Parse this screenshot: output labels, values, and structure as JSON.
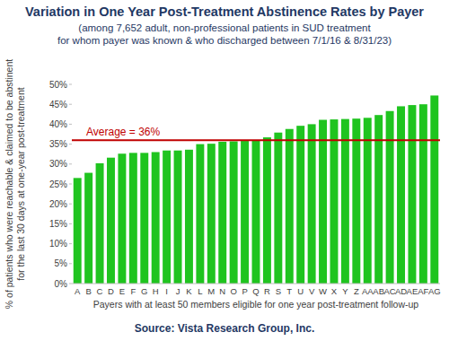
{
  "chart_data": {
    "type": "bar",
    "title": "Variation in One Year Post-Treatment Abstinence Rates by Payer",
    "subtitle": [
      "(among 7,652 adult, non-professional patients in SUD treatment",
      "for whom payer was known & who discharged between 7/1/16 & 8/31/23)"
    ],
    "y_label": [
      "% of patients who were reachable & claimed to be abstinent",
      "for the last 30 days at one-year post-treatment"
    ],
    "x_label": "Payers with at least 50 members eligible for one year post-treatment follow-up",
    "source": "Source:  Vista Research Group, Inc.",
    "categories": [
      "A",
      "B",
      "C",
      "D",
      "E",
      "F",
      "G",
      "H",
      "I",
      "J",
      "K",
      "L",
      "M",
      "N",
      "O",
      "P",
      "Q",
      "R",
      "S",
      "T",
      "U",
      "V",
      "W",
      "X",
      "Y",
      "Z",
      "AA",
      "AB",
      "AC",
      "AD",
      "AE",
      "AF",
      "AG"
    ],
    "values": [
      26.5,
      27.8,
      30.2,
      31.6,
      32.6,
      32.8,
      32.8,
      33.0,
      33.4,
      33.4,
      33.6,
      35.0,
      35.1,
      35.6,
      35.7,
      35.8,
      35.9,
      36.7,
      37.9,
      38.8,
      39.6,
      40.0,
      41.1,
      41.2,
      41.3,
      41.4,
      41.6,
      42.3,
      43.3,
      44.5,
      44.8,
      45.0,
      47.2
    ],
    "color": "#1fc41f",
    "reference_line": {
      "value": 36,
      "label": "Average = 36%",
      "color": "#c00000"
    },
    "ylim": [
      0,
      50
    ],
    "yticks": [
      {
        "value": 0,
        "label": "0%"
      },
      {
        "value": 5,
        "label": "5%"
      },
      {
        "value": 10,
        "label": "10%"
      },
      {
        "value": 15,
        "label": "15%"
      },
      {
        "value": 20,
        "label": "20%"
      },
      {
        "value": 25,
        "label": "25%"
      },
      {
        "value": 30,
        "label": "30%"
      },
      {
        "value": 35,
        "label": "35%"
      },
      {
        "value": 40,
        "label": "40%"
      },
      {
        "value": 45,
        "label": "45%"
      },
      {
        "value": 50,
        "label": "50%"
      }
    ],
    "grid": false
  }
}
